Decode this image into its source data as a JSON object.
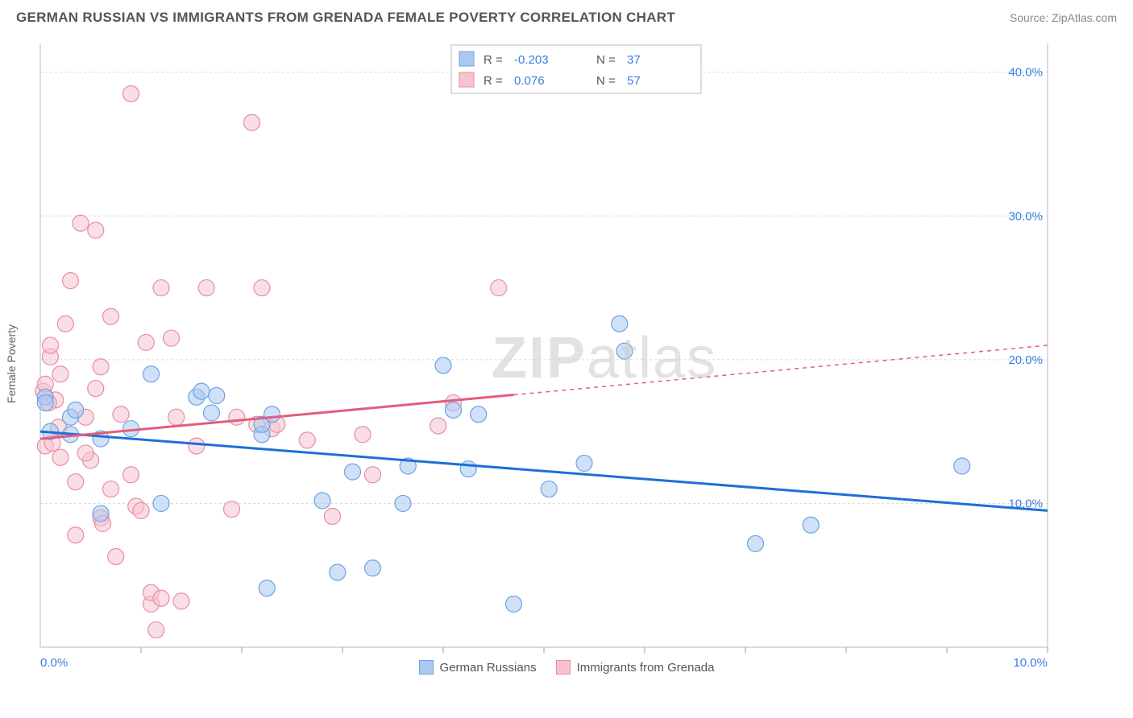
{
  "header": {
    "title": "GERMAN RUSSIAN VS IMMIGRANTS FROM GRENADA FEMALE POVERTY CORRELATION CHART",
    "source": "Source: ZipAtlas.com"
  },
  "axes": {
    "ylabel": "Female Poverty",
    "xlim": [
      0,
      10
    ],
    "ylim": [
      0,
      42
    ],
    "yticks": [
      10,
      20,
      30,
      40
    ],
    "ytick_labels": [
      "10.0%",
      "20.0%",
      "30.0%",
      "40.0%"
    ],
    "xtick_left": "0.0%",
    "xtick_right": "10.0%",
    "xtick_marks": [
      1,
      2,
      3,
      4,
      5,
      6,
      7,
      8,
      9,
      10
    ]
  },
  "colors": {
    "series1_fill": "#a9c9f0",
    "series1_stroke": "#6aa3e6",
    "series1_line": "#1f6fd6",
    "series2_fill": "#f6c3cf",
    "series2_stroke": "#e88da2",
    "series2_line": "#e45c7b",
    "grid": "#d8d8d8",
    "axis": "#cfcfcf",
    "tick_text": "#3a7de0",
    "label_text": "#666666",
    "bg": "#ffffff"
  },
  "marker": {
    "radius": 10,
    "fill_opacity": 0.55
  },
  "stats_box": {
    "rows": [
      {
        "r_label": "R =",
        "r": "-0.203",
        "n_label": "N =",
        "n": "37"
      },
      {
        "r_label": "R =",
        "r": " 0.076",
        "n_label": "N =",
        "n": "57"
      }
    ]
  },
  "legend": {
    "series1": "German Russians",
    "series2": "Immigrants from Grenada"
  },
  "watermark": {
    "a": "ZIP",
    "b": "atlas"
  },
  "series1": {
    "name": "German Russians",
    "points": [
      [
        0.05,
        17.4
      ],
      [
        0.05,
        17.0
      ],
      [
        0.1,
        15.0
      ],
      [
        0.3,
        16.0
      ],
      [
        0.3,
        14.8
      ],
      [
        0.35,
        16.5
      ],
      [
        0.6,
        9.3
      ],
      [
        0.6,
        14.5
      ],
      [
        0.9,
        15.2
      ],
      [
        1.1,
        19.0
      ],
      [
        1.2,
        10.0
      ],
      [
        1.55,
        17.4
      ],
      [
        1.6,
        17.8
      ],
      [
        1.7,
        16.3
      ],
      [
        1.75,
        17.5
      ],
      [
        2.2,
        14.8
      ],
      [
        2.2,
        15.5
      ],
      [
        2.3,
        16.2
      ],
      [
        2.25,
        4.1
      ],
      [
        2.8,
        10.2
      ],
      [
        2.95,
        5.2
      ],
      [
        3.1,
        12.2
      ],
      [
        3.3,
        5.5
      ],
      [
        3.6,
        10.0
      ],
      [
        3.65,
        12.6
      ],
      [
        4.0,
        19.6
      ],
      [
        4.1,
        16.5
      ],
      [
        4.25,
        12.4
      ],
      [
        4.35,
        16.2
      ],
      [
        4.7,
        3.0
      ],
      [
        5.05,
        11.0
      ],
      [
        5.4,
        12.8
      ],
      [
        5.75,
        22.5
      ],
      [
        5.8,
        20.6
      ],
      [
        7.1,
        7.2
      ],
      [
        7.65,
        8.5
      ],
      [
        9.15,
        12.6
      ]
    ],
    "trend": {
      "y_at_x0": 15.0,
      "y_at_x10": 9.5
    }
  },
  "series2": {
    "name": "Immigrants from Grenada",
    "points": [
      [
        0.03,
        17.8
      ],
      [
        0.05,
        18.3
      ],
      [
        0.05,
        14.0
      ],
      [
        0.1,
        20.2
      ],
      [
        0.1,
        21.0
      ],
      [
        0.15,
        17.2
      ],
      [
        0.18,
        15.3
      ],
      [
        0.2,
        19.0
      ],
      [
        0.2,
        13.2
      ],
      [
        0.25,
        22.5
      ],
      [
        0.3,
        25.5
      ],
      [
        0.35,
        11.5
      ],
      [
        0.35,
        7.8
      ],
      [
        0.4,
        29.5
      ],
      [
        0.45,
        16.0
      ],
      [
        0.5,
        13.0
      ],
      [
        0.55,
        29.0
      ],
      [
        0.6,
        19.5
      ],
      [
        0.6,
        9.0
      ],
      [
        0.62,
        8.6
      ],
      [
        0.7,
        23.0
      ],
      [
        0.75,
        6.3
      ],
      [
        0.8,
        16.2
      ],
      [
        0.9,
        12.0
      ],
      [
        0.9,
        38.5
      ],
      [
        0.95,
        9.8
      ],
      [
        1.0,
        9.5
      ],
      [
        1.05,
        21.2
      ],
      [
        1.1,
        3.0
      ],
      [
        1.1,
        3.8
      ],
      [
        1.15,
        1.2
      ],
      [
        1.2,
        25.0
      ],
      [
        1.2,
        3.4
      ],
      [
        1.3,
        21.5
      ],
      [
        1.35,
        16.0
      ],
      [
        1.4,
        3.2
      ],
      [
        1.55,
        14.0
      ],
      [
        1.65,
        25.0
      ],
      [
        1.9,
        9.6
      ],
      [
        1.95,
        16.0
      ],
      [
        2.1,
        36.5
      ],
      [
        2.15,
        15.5
      ],
      [
        2.2,
        25.0
      ],
      [
        2.3,
        15.2
      ],
      [
        2.35,
        15.5
      ],
      [
        2.65,
        14.4
      ],
      [
        2.9,
        9.1
      ],
      [
        3.2,
        14.8
      ],
      [
        3.3,
        12.0
      ],
      [
        3.95,
        15.4
      ],
      [
        4.1,
        17.0
      ],
      [
        4.55,
        25.0
      ],
      [
        0.08,
        17.0
      ],
      [
        0.12,
        14.2
      ],
      [
        0.45,
        13.5
      ],
      [
        0.55,
        18.0
      ],
      [
        0.7,
        11.0
      ]
    ],
    "trend": {
      "y_at_x0": 14.5,
      "y_at_x10": 21.0,
      "solid_until_x": 4.7
    }
  }
}
